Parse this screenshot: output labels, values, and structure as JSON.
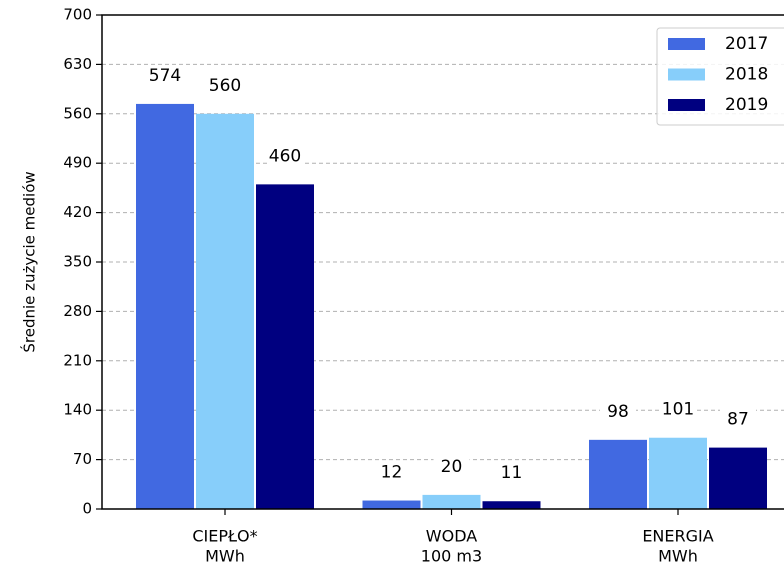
{
  "chart_data": {
    "type": "bar",
    "y_label": "Średnie zużycie mediów",
    "categories": [
      [
        "CIEPŁO*",
        "MWh"
      ],
      [
        "WODA",
        "100 m3"
      ],
      [
        "ENERGIA",
        "MWh"
      ]
    ],
    "series": [
      {
        "name": "2017",
        "color": "#4169e1",
        "values": [
          574,
          12,
          98
        ]
      },
      {
        "name": "2018",
        "color": "#87cefa",
        "values": [
          560,
          20,
          101
        ]
      },
      {
        "name": "2019",
        "color": "#000080",
        "values": [
          460,
          11,
          87
        ]
      }
    ],
    "ylim": [
      0,
      700
    ],
    "yticks": [
      0,
      70,
      140,
      210,
      280,
      350,
      420,
      490,
      560,
      630,
      700
    ],
    "grid": true,
    "legend": "upper right"
  }
}
